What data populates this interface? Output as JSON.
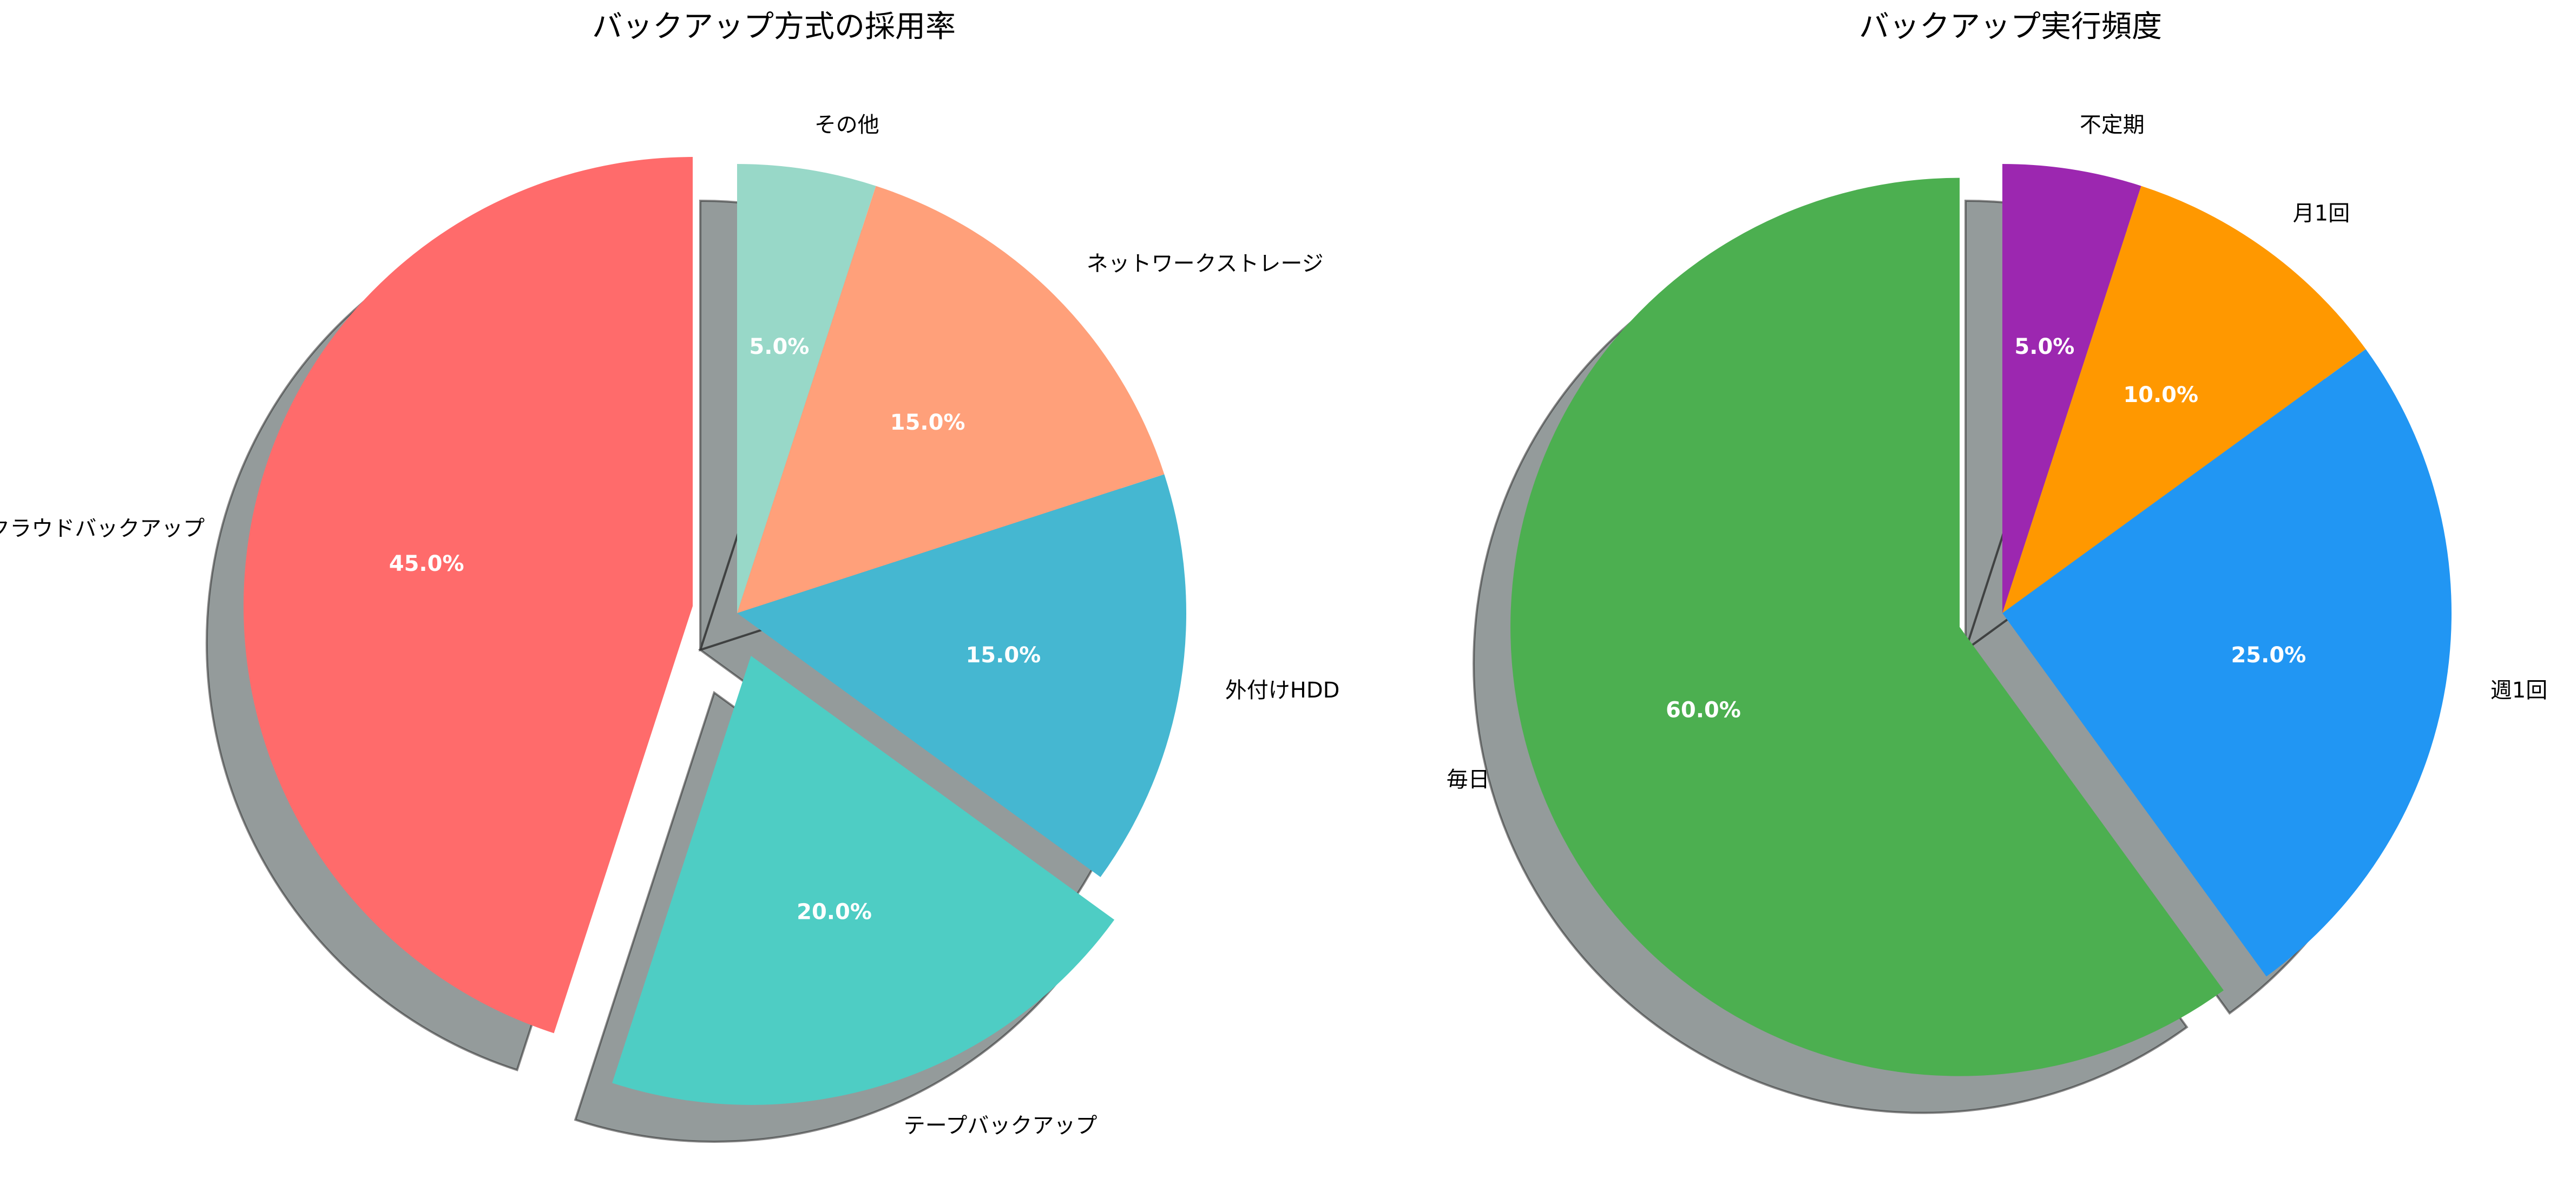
{
  "chart_data": [
    {
      "type": "pie",
      "title": "バックアップ方式の採用率",
      "labels": [
        "クラウドバックアップ",
        "テープバックアップ",
        "外付けHDD",
        "ネットワークストレージ",
        "その他"
      ],
      "values": [
        45,
        20,
        15,
        15,
        5
      ],
      "percent_labels": [
        "45.0%",
        "20.0%",
        "15.0%",
        "15.0%",
        "5.0%"
      ],
      "colors": [
        "#FF6B6B",
        "#4ECDC4",
        "#45B7D1",
        "#FFA07A",
        "#98D8C8"
      ],
      "exploded": [
        "クラウドバックアップ",
        "テープバックアップ"
      ],
      "start_angle_deg": 90,
      "direction": "counterclockwise",
      "shadow": true,
      "legend": "none"
    },
    {
      "type": "pie",
      "title": "バックアップ実行頻度",
      "labels": [
        "毎日",
        "週1回",
        "月1回",
        "不定期"
      ],
      "values": [
        60,
        25,
        10,
        5
      ],
      "percent_labels": [
        "60.0%",
        "25.0%",
        "10.0%",
        "5.0%"
      ],
      "colors": [
        "#4CAF50",
        "#2196F3",
        "#FF9800",
        "#9C27B0"
      ],
      "exploded": [
        "毎日"
      ],
      "start_angle_deg": 90,
      "direction": "counterclockwise",
      "shadow": true,
      "legend": "none"
    }
  ]
}
